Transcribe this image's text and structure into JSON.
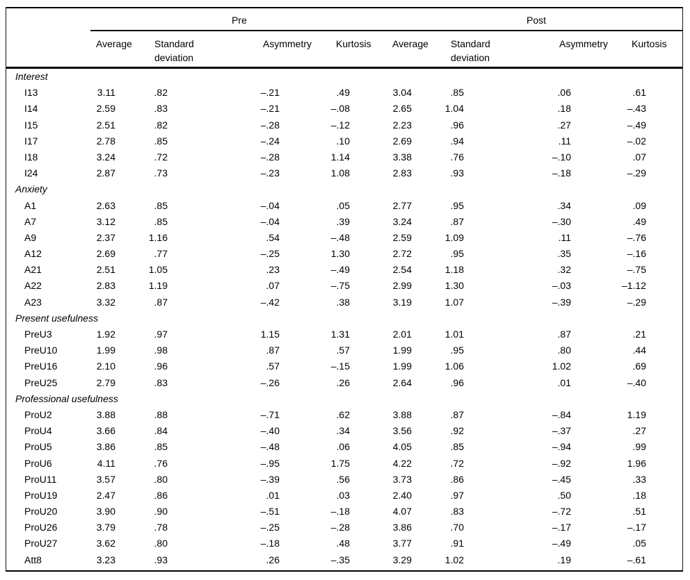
{
  "colors": {
    "text": "#000000",
    "rule": "#000000",
    "background": "#ffffff"
  },
  "table": {
    "groups": [
      {
        "label": "Pre"
      },
      {
        "label": "Post"
      }
    ],
    "columns": [
      "Average",
      "Standard deviation",
      "Asymmetry",
      "Kurtosis",
      "Average",
      "Standard deviation",
      "Asymmetry",
      "Kurtosis"
    ],
    "sections": [
      {
        "label": "Interest",
        "rows": [
          {
            "label": "I13",
            "values": [
              "3.11",
              ".82",
              "–.21",
              ".49",
              "3.04",
              ".85",
              ".06",
              ".61"
            ]
          },
          {
            "label": "I14",
            "values": [
              "2.59",
              ".83",
              "–.21",
              "–.08",
              "2.65",
              "1.04",
              ".18",
              "–.43"
            ]
          },
          {
            "label": "I15",
            "values": [
              "2.51",
              ".82",
              "–.28",
              "–.12",
              "2.23",
              ".96",
              ".27",
              "–.49"
            ]
          },
          {
            "label": "I17",
            "values": [
              "2.78",
              ".85",
              "–.24",
              ".10",
              "2.69",
              ".94",
              ".11",
              "–.02"
            ]
          },
          {
            "label": "I18",
            "values": [
              "3.24",
              ".72",
              "–.28",
              "1.14",
              "3.38",
              ".76",
              "–.10",
              ".07"
            ]
          },
          {
            "label": "I24",
            "values": [
              "2.87",
              ".73",
              "–.23",
              "1.08",
              "2.83",
              ".93",
              "–.18",
              "–.29"
            ]
          }
        ]
      },
      {
        "label": "Anxiety",
        "rows": [
          {
            "label": "A1",
            "values": [
              "2.63",
              ".85",
              "–.04",
              ".05",
              "2.77",
              ".95",
              ".34",
              ".09"
            ]
          },
          {
            "label": "A7",
            "values": [
              "3.12",
              ".85",
              "–.04",
              ".39",
              "3.24",
              ".87",
              "–.30",
              ".49"
            ]
          },
          {
            "label": "A9",
            "values": [
              "2.37",
              "1.16",
              ".54",
              "–.48",
              "2.59",
              "1.09",
              ".11",
              "–.76"
            ]
          },
          {
            "label": "A12",
            "values": [
              "2.69",
              ".77",
              "–.25",
              "1.30",
              "2.72",
              ".95",
              ".35",
              "–.16"
            ]
          },
          {
            "label": "A21",
            "values": [
              "2.51",
              "1.05",
              ".23",
              "–.49",
              "2.54",
              "1.18",
              ".32",
              "–.75"
            ]
          },
          {
            "label": "A22",
            "values": [
              "2.83",
              "1.19",
              ".07",
              "–.75",
              "2.99",
              "1.30",
              "–.03",
              "–1.12"
            ]
          },
          {
            "label": "A23",
            "values": [
              "3.32",
              ".87",
              "–.42",
              ".38",
              "3.19",
              "1.07",
              "–.39",
              "–.29"
            ]
          }
        ]
      },
      {
        "label": "Present usefulness",
        "rows": [
          {
            "label": "PreU3",
            "values": [
              "1.92",
              ".97",
              "1.15",
              "1.31",
              "2.01",
              "1.01",
              ".87",
              ".21"
            ]
          },
          {
            "label": "PreU10",
            "values": [
              "1.99",
              ".98",
              ".87",
              ".57",
              "1.99",
              ".95",
              ".80",
              ".44"
            ]
          },
          {
            "label": "PreU16",
            "values": [
              "2.10",
              ".96",
              ".57",
              "–.15",
              "1.99",
              "1.06",
              "1.02",
              ".69"
            ]
          },
          {
            "label": "PreU25",
            "values": [
              "2.79",
              ".83",
              "–.26",
              ".26",
              "2.64",
              ".96",
              ".01",
              "–.40"
            ]
          }
        ]
      },
      {
        "label": "Professional usefulness",
        "rows": [
          {
            "label": "ProU2",
            "values": [
              "3.88",
              ".88",
              "–.71",
              ".62",
              "3.88",
              ".87",
              "–.84",
              "1.19"
            ]
          },
          {
            "label": "ProU4",
            "values": [
              "3.66",
              ".84",
              "–.40",
              ".34",
              "3.56",
              ".92",
              "–.37",
              ".27"
            ]
          },
          {
            "label": "ProU5",
            "values": [
              "3.86",
              ".85",
              "–.48",
              ".06",
              "4.05",
              ".85",
              "–.94",
              ".99"
            ]
          },
          {
            "label": "ProU6",
            "values": [
              "4.11",
              ".76",
              "–.95",
              "1.75",
              "4.22",
              ".72",
              "–.92",
              "1.96"
            ]
          },
          {
            "label": "ProU11",
            "values": [
              "3.57",
              ".80",
              "–.39",
              ".56",
              "3.73",
              ".86",
              "–.45",
              ".33"
            ]
          },
          {
            "label": "ProU19",
            "values": [
              "2.47",
              ".86",
              ".01",
              ".03",
              "2.40",
              ".97",
              ".50",
              ".18"
            ]
          },
          {
            "label": "ProU20",
            "values": [
              "3.90",
              ".90",
              "–.51",
              "–.18",
              "4.07",
              ".83",
              "–.72",
              ".51"
            ]
          },
          {
            "label": "ProU26",
            "values": [
              "3.79",
              ".78",
              "–.25",
              "–.28",
              "3.86",
              ".70",
              "–.17",
              "–.17"
            ]
          },
          {
            "label": "ProU27",
            "values": [
              "3.62",
              ".80",
              "–.18",
              ".48",
              "3.77",
              ".91",
              "–.49",
              ".05"
            ]
          },
          {
            "label": "Att8",
            "values": [
              "3.23",
              ".93",
              ".26",
              "–.35",
              "3.29",
              "1.02",
              ".19",
              "–.61"
            ]
          }
        ]
      }
    ]
  }
}
